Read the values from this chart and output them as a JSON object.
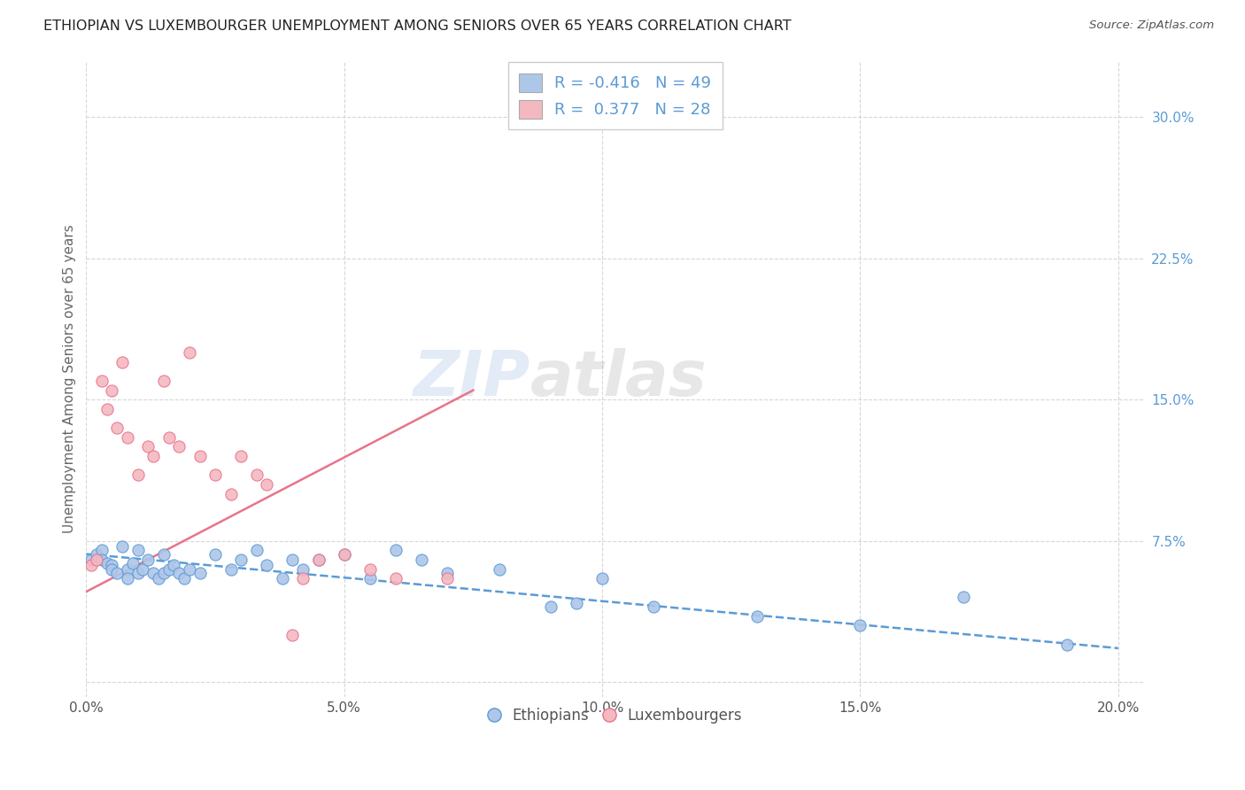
{
  "title": "ETHIOPIAN VS LUXEMBOURGER UNEMPLOYMENT AMONG SENIORS OVER 65 YEARS CORRELATION CHART",
  "source": "Source: ZipAtlas.com",
  "ylabel": "Unemployment Among Seniors over 65 years",
  "xlim": [
    0.0,
    0.205
  ],
  "ylim": [
    -0.008,
    0.33
  ],
  "xticks": [
    0.0,
    0.05,
    0.1,
    0.15,
    0.2
  ],
  "xtick_labels": [
    "0.0%",
    "5.0%",
    "10.0%",
    "15.0%",
    "20.0%"
  ],
  "yticks": [
    0.0,
    0.075,
    0.15,
    0.225,
    0.3
  ],
  "ytick_labels": [
    "",
    "7.5%",
    "15.0%",
    "22.5%",
    "30.0%"
  ],
  "r_ethiopian": -0.416,
  "n_ethiopian": 49,
  "r_luxembourger": 0.377,
  "n_luxembourger": 28,
  "color_ethiopian": "#aec6e8",
  "color_luxembourger": "#f4b8c1",
  "line_color_ethiopian": "#5b9bd5",
  "line_color_luxembourger": "#e8748a",
  "watermark_part1": "ZIP",
  "watermark_part2": "atlas",
  "background_color": "#ffffff",
  "ethiopian_x": [
    0.001,
    0.002,
    0.003,
    0.003,
    0.004,
    0.005,
    0.005,
    0.006,
    0.007,
    0.008,
    0.008,
    0.009,
    0.01,
    0.01,
    0.011,
    0.012,
    0.013,
    0.014,
    0.015,
    0.015,
    0.016,
    0.017,
    0.018,
    0.019,
    0.02,
    0.022,
    0.025,
    0.028,
    0.03,
    0.033,
    0.035,
    0.038,
    0.04,
    0.042,
    0.045,
    0.05,
    0.055,
    0.06,
    0.065,
    0.07,
    0.08,
    0.09,
    0.095,
    0.1,
    0.11,
    0.13,
    0.15,
    0.17,
    0.19
  ],
  "ethiopian_y": [
    0.065,
    0.068,
    0.07,
    0.065,
    0.063,
    0.062,
    0.06,
    0.058,
    0.072,
    0.06,
    0.055,
    0.063,
    0.058,
    0.07,
    0.06,
    0.065,
    0.058,
    0.055,
    0.068,
    0.058,
    0.06,
    0.062,
    0.058,
    0.055,
    0.06,
    0.058,
    0.068,
    0.06,
    0.065,
    0.07,
    0.062,
    0.055,
    0.065,
    0.06,
    0.065,
    0.068,
    0.055,
    0.07,
    0.065,
    0.058,
    0.06,
    0.04,
    0.042,
    0.055,
    0.04,
    0.035,
    0.03,
    0.045,
    0.02
  ],
  "luxembourger_x": [
    0.001,
    0.002,
    0.003,
    0.004,
    0.005,
    0.006,
    0.007,
    0.008,
    0.01,
    0.012,
    0.013,
    0.015,
    0.016,
    0.018,
    0.02,
    0.022,
    0.025,
    0.028,
    0.03,
    0.033,
    0.035,
    0.04,
    0.042,
    0.045,
    0.05,
    0.055,
    0.06,
    0.07
  ],
  "luxembourger_y": [
    0.062,
    0.065,
    0.16,
    0.145,
    0.155,
    0.135,
    0.17,
    0.13,
    0.11,
    0.125,
    0.12,
    0.16,
    0.13,
    0.125,
    0.175,
    0.12,
    0.11,
    0.1,
    0.12,
    0.11,
    0.105,
    0.025,
    0.055,
    0.065,
    0.068,
    0.06,
    0.055,
    0.055
  ],
  "eth_trend_x": [
    0.0,
    0.2
  ],
  "eth_trend_y": [
    0.068,
    0.018
  ],
  "lux_trend_x": [
    0.0,
    0.075
  ],
  "lux_trend_y": [
    0.048,
    0.155
  ]
}
